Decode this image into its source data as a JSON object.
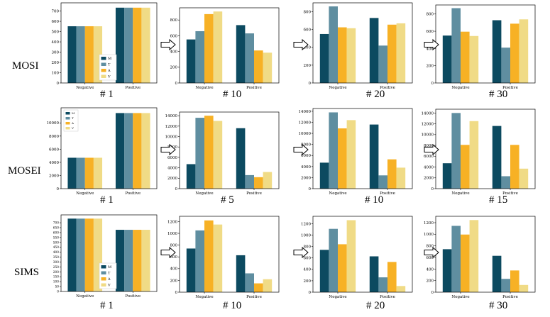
{
  "figure": {
    "rows": [
      {
        "label": "MOSI",
        "epochs": [
          "# 1",
          "# 10",
          "# 20",
          "# 30"
        ]
      },
      {
        "label": "MOSEI",
        "epochs": [
          "# 1",
          "# 5",
          "# 10",
          "# 15"
        ]
      },
      {
        "label": "SIMS",
        "epochs": [
          "# 1",
          "# 10",
          "# 20",
          "# 30"
        ]
      }
    ]
  },
  "colors": {
    "M": "#0c4a60",
    "T": "#5f8ea0",
    "A": "#f7b125",
    "V": "#f0db86"
  },
  "legend": [
    "M",
    "T",
    "A",
    "V"
  ],
  "chart_data": [
    {
      "type": "bar",
      "dataset": "MOSI",
      "epoch": "# 1",
      "categories": [
        "Negative",
        "Positive"
      ],
      "series": [
        {
          "name": "M",
          "values": [
            552,
            733
          ]
        },
        {
          "name": "T",
          "values": [
            552,
            733
          ]
        },
        {
          "name": "A",
          "values": [
            552,
            733
          ]
        },
        {
          "name": "V",
          "values": [
            552,
            733
          ]
        }
      ],
      "ylim": [
        0,
        780
      ],
      "yticks": [
        0,
        100,
        200,
        300,
        400,
        500,
        600,
        700
      ],
      "legend": "lower-right"
    },
    {
      "type": "bar",
      "dataset": "MOSI",
      "epoch": "# 10",
      "categories": [
        "Negative",
        "Positive"
      ],
      "series": [
        {
          "name": "M",
          "values": [
            553,
            735
          ]
        },
        {
          "name": "T",
          "values": [
            658,
            630
          ]
        },
        {
          "name": "A",
          "values": [
            875,
            413
          ]
        },
        {
          "name": "V",
          "values": [
            908,
            385
          ]
        }
      ],
      "ylim": [
        0,
        955
      ],
      "yticks": [
        0,
        200,
        400,
        600,
        800
      ]
    },
    {
      "type": "bar",
      "dataset": "MOSI",
      "epoch": "# 20",
      "categories": [
        "Negative",
        "Positive"
      ],
      "series": [
        {
          "name": "M",
          "values": [
            550,
            730
          ]
        },
        {
          "name": "T",
          "values": [
            860,
            420
          ]
        },
        {
          "name": "A",
          "values": [
            625,
            655
          ]
        },
        {
          "name": "V",
          "values": [
            615,
            670
          ]
        }
      ],
      "ylim": [
        0,
        900
      ],
      "yticks": [
        0,
        200,
        400,
        600,
        800
      ]
    },
    {
      "type": "bar",
      "dataset": "MOSI",
      "epoch": "# 30",
      "categories": [
        "Negative",
        "Positive"
      ],
      "series": [
        {
          "name": "M",
          "values": [
            550,
            728
          ]
        },
        {
          "name": "T",
          "values": [
            868,
            410
          ]
        },
        {
          "name": "A",
          "values": [
            595,
            688
          ]
        },
        {
          "name": "V",
          "values": [
            545,
            738
          ]
        }
      ],
      "ylim": [
        0,
        905
      ],
      "yticks": [
        0,
        200,
        400,
        600,
        800
      ]
    },
    {
      "type": "bar",
      "dataset": "MOSEI",
      "epoch": "# 1",
      "categories": [
        "Negative",
        "Positive"
      ],
      "series": [
        {
          "name": "M",
          "values": [
            4700,
            11500
          ]
        },
        {
          "name": "T",
          "values": [
            4700,
            11500
          ]
        },
        {
          "name": "A",
          "values": [
            4700,
            11500
          ]
        },
        {
          "name": "V",
          "values": [
            4700,
            11500
          ]
        }
      ],
      "ylim": [
        0,
        12300
      ],
      "yticks": [
        0,
        2000,
        4000,
        6000,
        8000,
        10000
      ],
      "legend": "upper-left"
    },
    {
      "type": "bar",
      "dataset": "MOSEI",
      "epoch": "# 5",
      "categories": [
        "Negative",
        "Positive"
      ],
      "series": [
        {
          "name": "M",
          "values": [
            4700,
            11600
          ]
        },
        {
          "name": "T",
          "values": [
            13600,
            2600
          ]
        },
        {
          "name": "A",
          "values": [
            14000,
            2200
          ]
        },
        {
          "name": "V",
          "values": [
            13000,
            3200
          ]
        }
      ],
      "ylim": [
        0,
        14700
      ],
      "yticks": [
        0,
        2000,
        4000,
        6000,
        8000,
        10000,
        12000,
        14000
      ]
    },
    {
      "type": "bar",
      "dataset": "MOSEI",
      "epoch": "# 10",
      "categories": [
        "Negative",
        "Positive"
      ],
      "series": [
        {
          "name": "M",
          "values": [
            4700,
            11600
          ]
        },
        {
          "name": "T",
          "values": [
            13800,
            2400
          ]
        },
        {
          "name": "A",
          "values": [
            10900,
            5300
          ]
        },
        {
          "name": "V",
          "values": [
            12400,
            3800
          ]
        }
      ],
      "ylim": [
        0,
        14500
      ],
      "yticks": [
        0,
        2000,
        4000,
        6000,
        8000,
        10000,
        12000,
        14000
      ]
    },
    {
      "type": "bar",
      "dataset": "MOSEI",
      "epoch": "# 15",
      "categories": [
        "Negative",
        "Positive"
      ],
      "series": [
        {
          "name": "M",
          "values": [
            4700,
            11600
          ]
        },
        {
          "name": "T",
          "values": [
            14000,
            2300
          ]
        },
        {
          "name": "A",
          "values": [
            8100,
            8100
          ]
        },
        {
          "name": "V",
          "values": [
            12500,
            3700
          ]
        }
      ],
      "ylim": [
        0,
        14700
      ],
      "yticks": [
        0,
        2000,
        4000,
        6000,
        8000,
        10000,
        12000,
        14000
      ]
    },
    {
      "type": "bar",
      "dataset": "SIMS",
      "epoch": "# 1",
      "categories": [
        "Negative",
        "Positive"
      ],
      "series": [
        {
          "name": "M",
          "values": [
            742,
            628
          ]
        },
        {
          "name": "T",
          "values": [
            742,
            628
          ]
        },
        {
          "name": "A",
          "values": [
            742,
            628
          ]
        },
        {
          "name": "V",
          "values": [
            742,
            628
          ]
        }
      ],
      "ylim": [
        0,
        780
      ],
      "yticks": [
        0,
        50,
        100,
        150,
        200,
        250,
        300,
        350,
        400,
        450,
        500,
        550,
        600,
        650,
        700
      ],
      "legend": "lower-right"
    },
    {
      "type": "bar",
      "dataset": "SIMS",
      "epoch": "# 10",
      "categories": [
        "Negative",
        "Positive"
      ],
      "series": [
        {
          "name": "M",
          "values": [
            742,
            628
          ]
        },
        {
          "name": "T",
          "values": [
            1050,
            320
          ]
        },
        {
          "name": "A",
          "values": [
            1220,
            150
          ]
        },
        {
          "name": "V",
          "values": [
            1150,
            220
          ]
        }
      ],
      "ylim": [
        0,
        1290
      ],
      "yticks": [
        0,
        200,
        400,
        600,
        800,
        1000,
        1200
      ]
    },
    {
      "type": "bar",
      "dataset": "SIMS",
      "epoch": "# 20",
      "categories": [
        "Negative",
        "Positive"
      ],
      "series": [
        {
          "name": "M",
          "values": [
            742,
            628
          ]
        },
        {
          "name": "T",
          "values": [
            1110,
            260
          ]
        },
        {
          "name": "A",
          "values": [
            840,
            530
          ]
        },
        {
          "name": "V",
          "values": [
            1262,
            108
          ]
        }
      ],
      "ylim": [
        0,
        1330
      ],
      "yticks": [
        0,
        200,
        400,
        600,
        800,
        1000,
        1200
      ]
    },
    {
      "type": "bar",
      "dataset": "SIMS",
      "epoch": "# 30",
      "categories": [
        "Negative",
        "Positive"
      ],
      "series": [
        {
          "name": "M",
          "values": [
            742,
            628
          ]
        },
        {
          "name": "T",
          "values": [
            1145,
            230
          ]
        },
        {
          "name": "A",
          "values": [
            995,
            375
          ]
        },
        {
          "name": "V",
          "values": [
            1245,
            125
          ]
        }
      ],
      "ylim": [
        0,
        1310
      ],
      "yticks": [
        0,
        200,
        400,
        600,
        800,
        1000,
        1200
      ]
    }
  ]
}
